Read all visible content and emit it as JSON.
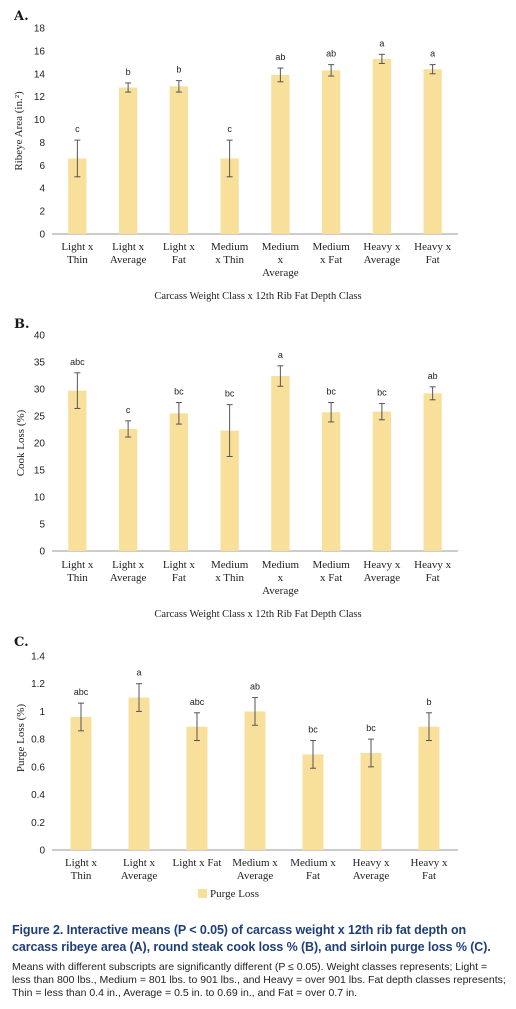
{
  "colors": {
    "bar": "#f8df9a",
    "error": "#555555",
    "axis": "#999999",
    "caption_title": "#1f3f7a"
  },
  "chart_data": [
    {
      "type": "bar",
      "panel": "A.",
      "categories": [
        [
          "Light x",
          "Thin"
        ],
        [
          "Light x",
          "Average"
        ],
        [
          "Light x",
          "Fat"
        ],
        [
          "Medium",
          "x Thin"
        ],
        [
          "Medium",
          "x",
          "Average"
        ],
        [
          "Medium",
          "x Fat"
        ],
        [
          "Heavy x",
          "Average"
        ],
        [
          "Heavy x",
          "Fat"
        ]
      ],
      "values": [
        6.6,
        12.8,
        12.9,
        6.6,
        13.9,
        14.3,
        15.3,
        14.4
      ],
      "error": [
        1.6,
        0.4,
        0.5,
        1.6,
        0.6,
        0.5,
        0.4,
        0.4
      ],
      "letters": [
        "c",
        "b",
        "b",
        "c",
        "ab",
        "ab",
        "a",
        "a"
      ],
      "ylabel": "Ribeye Area (in.²)",
      "xlabel": "Carcass Weight Class x 12th Rib Fat Depth Class",
      "ylim": [
        0,
        18
      ],
      "yticks": [
        "0",
        "2",
        "4",
        "6",
        "8",
        "10",
        "12",
        "14",
        "16",
        "18"
      ],
      "grid": false
    },
    {
      "type": "bar",
      "panel": "B.",
      "categories": [
        [
          "Light x",
          "Thin"
        ],
        [
          "Light x",
          "Average"
        ],
        [
          "Light x",
          "Fat"
        ],
        [
          "Medium",
          "x Thin"
        ],
        [
          "Medium",
          "x",
          "Average"
        ],
        [
          "Medium",
          "x Fat"
        ],
        [
          "Heavy x",
          "Average"
        ],
        [
          "Heavy x",
          "Fat"
        ]
      ],
      "values": [
        29.7,
        22.6,
        25.5,
        22.3,
        32.4,
        25.7,
        25.8,
        29.2
      ],
      "error": [
        3.3,
        1.5,
        2.0,
        4.8,
        1.9,
        1.8,
        1.5,
        1.2
      ],
      "letters": [
        "abc",
        "c",
        "bc",
        "bc",
        "a",
        "bc",
        "bc",
        "ab"
      ],
      "ylabel": "Cook Loss (%)",
      "xlabel": "Carcass Weight Class x 12th Rib Fat Depth Class",
      "ylim": [
        0,
        40
      ],
      "yticks": [
        "0",
        "5",
        "10",
        "15",
        "20",
        "25",
        "30",
        "35",
        "40"
      ],
      "grid": false
    },
    {
      "type": "bar",
      "panel": "C.",
      "categories": [
        [
          "Light x",
          "Thin"
        ],
        [
          "Light x",
          "Average"
        ],
        [
          "Light x Fat"
        ],
        [
          "Medium x",
          "Average"
        ],
        [
          "Medium x",
          "Fat"
        ],
        [
          "Heavy x",
          "Average"
        ],
        [
          "Heavy x",
          "Fat"
        ]
      ],
      "values": [
        0.96,
        1.1,
        0.89,
        1.0,
        0.69,
        0.7,
        0.89
      ],
      "error": [
        0.1,
        0.1,
        0.1,
        0.1,
        0.1,
        0.1,
        0.1
      ],
      "letters": [
        "abc",
        "a",
        "abc",
        "ab",
        "bc",
        "bc",
        "b"
      ],
      "ylabel": "Purge Loss (%)",
      "xlabel": "",
      "ylim": [
        0,
        1.4
      ],
      "yticks": [
        "0",
        "0.2",
        "0.4",
        "0.6",
        "0.8",
        "1",
        "1.2",
        "1.4"
      ],
      "legend": {
        "label": "Purge Loss",
        "position": "bottom"
      },
      "grid": false
    }
  ],
  "caption": {
    "title": "Figure 2. Interactive means (P < 0.05) of carcass weight x 12th rib fat depth on carcass ribeye area (A), round steak cook loss % (B), and sirloin purge loss % (C).",
    "body": "Means with different subscripts are significantly different (P ≤ 0.05). Weight classes represents; Light = less than 800 lbs., Medium = 801 lbs. to 901 lbs., and Heavy = over 901 lbs. Fat depth classes represents; Thin = less than 0.4 in., Average = 0.5 in. to 0.69 in., and Fat = over 0.7 in."
  }
}
